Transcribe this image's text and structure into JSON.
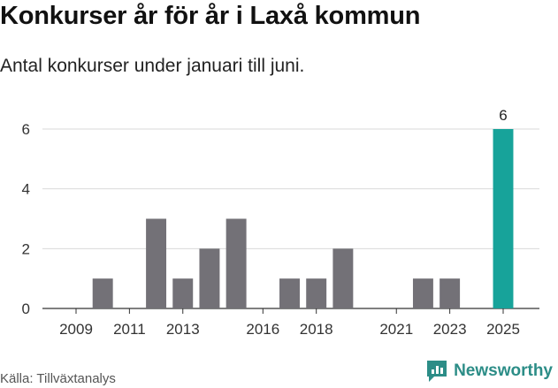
{
  "title": "Konkurser år för år i Laxå kommun",
  "subtitle": "Antal konkurser under januari till juni.",
  "source": "Källa: Tillväxtanalys",
  "brand": "Newsworthy",
  "colors": {
    "bar": "#737177",
    "highlight": "#17a39a",
    "grid": "#d9d9d9",
    "brand": "#2c8d87"
  },
  "chart_data": {
    "type": "bar",
    "x": [
      2009,
      2010,
      2011,
      2012,
      2013,
      2014,
      2015,
      2016,
      2017,
      2018,
      2019,
      2020,
      2021,
      2022,
      2023,
      2024,
      2025
    ],
    "values": [
      0,
      1,
      0,
      3,
      1,
      2,
      3,
      0,
      1,
      1,
      2,
      0,
      0,
      1,
      1,
      0,
      6
    ],
    "highlight_index": 16,
    "x_ticks": [
      "2009",
      "2011",
      "2013",
      "2016",
      "2018",
      "2021",
      "2023",
      "2025"
    ],
    "y_ticks": [
      "0",
      "2",
      "4",
      "6"
    ],
    "ylim": [
      0,
      6
    ],
    "data_labels": [
      {
        "index": 16,
        "text": "6"
      }
    ],
    "grid": true
  }
}
